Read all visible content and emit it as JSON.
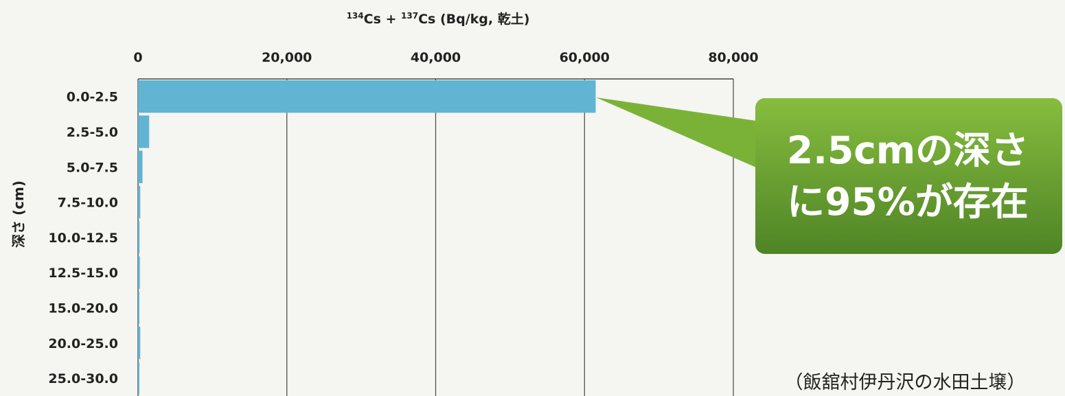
{
  "chart_data": {
    "type": "bar",
    "orientation": "horizontal",
    "categories": [
      "0.0-2.5",
      "2.5-5.0",
      "5.0-7.5",
      "7.5-10.0",
      "10.0-12.5",
      "12.5-15.0",
      "15.0-20.0",
      "20.0-25.0",
      "25.0-30.0"
    ],
    "values": [
      61500,
      1500,
      600,
      300,
      200,
      250,
      100,
      300,
      100
    ],
    "xlabel_sup1": "134",
    "xlabel_mid": "Cs + ",
    "xlabel_sup2": "137",
    "xlabel_tail": "Cs (Bq/kg, 乾土)",
    "ylabel": "深さ (cm)",
    "xlim": [
      0,
      80000
    ],
    "xticks": [
      "0",
      "20,000",
      "40,000",
      "60,000",
      "80,000"
    ],
    "grid": true,
    "bar_color": "#62b4d3"
  },
  "callout": {
    "line1": "2.5cmの深さ",
    "line2": "に95%が存在",
    "color": "#5f9a2c"
  },
  "source": "（飯舘村伊丹沢の水田土壌）"
}
